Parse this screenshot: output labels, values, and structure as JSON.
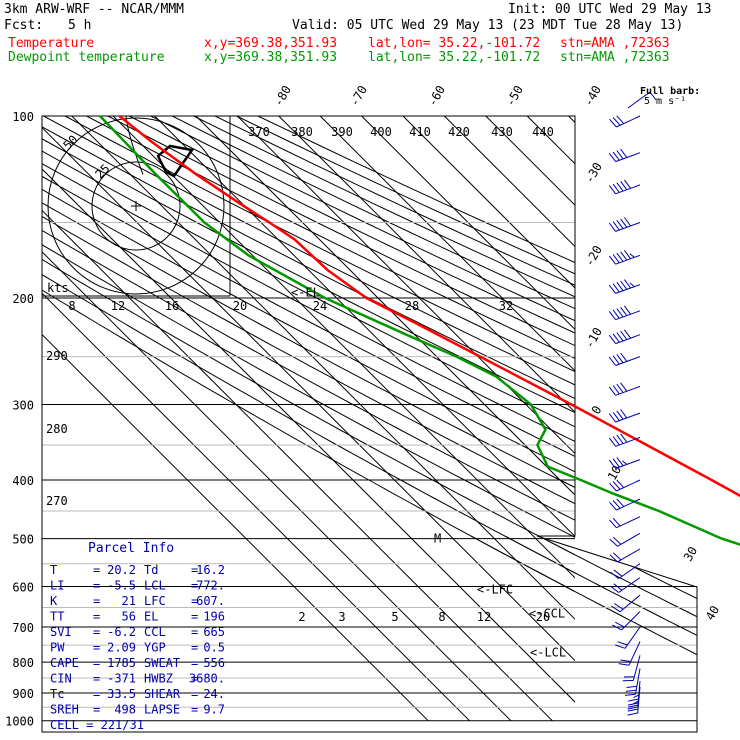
{
  "header": {
    "model": "3km ARW-WRF -- NCAR/MMM",
    "init": "Init: 00 UTC Wed 29 May 13",
    "fcst_label": "Fcst:",
    "fcst_value": "5 h",
    "valid": "Valid: 05 UTC Wed 29 May 13 (23 MDT Tue 28 May 13)",
    "temp_label": "Temperature",
    "dew_label": "Dewpoint temperature",
    "xy": "x,y=369.38,351.93",
    "latlon": "lat,lon= 35.22,-101.72",
    "stn": "stn=AMA ,72363",
    "barb_title": "Full barb:",
    "barb_units": "5 m s⁻¹"
  },
  "chart_data": {
    "type": "line",
    "title": "",
    "pressure_ticks": [
      100,
      200,
      300,
      400,
      500,
      600,
      700,
      800,
      900,
      1000
    ],
    "isotherm_labels": [
      -80,
      -70,
      -60,
      -50,
      -40,
      -30,
      -20,
      -10,
      0,
      10,
      20,
      30,
      40
    ],
    "theta_labels": [
      370,
      380,
      390,
      400,
      410,
      420,
      430,
      440
    ],
    "theta_side_labels": [
      290,
      280,
      270
    ],
    "mixing_ratio_labels": [
      2,
      3,
      5,
      8,
      12,
      20
    ],
    "hodograph_speed_labels": [
      8,
      12,
      16,
      20,
      24,
      28,
      32
    ],
    "hodograph_units": "kts",
    "hodograph_ring_labels": [
      50,
      25
    ],
    "levels": [
      {
        "text": "<-EL",
        "p": 196
      },
      {
        "text": "<-LFC",
        "p": 607
      },
      {
        "text": "<-CCL",
        "p": 665
      },
      {
        "text": "<-LCL",
        "p": 772
      },
      {
        "text": "M",
        "p": 500
      }
    ],
    "series": [
      {
        "name": "Temperature",
        "color": "#ff0000",
        "p": [
          880,
          850,
          820,
          800,
          770,
          740,
          700,
          660,
          600,
          550,
          500,
          450,
          400,
          350,
          300,
          250,
          220,
          200,
          180,
          160,
          150,
          140,
          125,
          110,
          100
        ],
        "t": [
          19.5,
          20.0,
          20.2,
          21.5,
          20.5,
          18.3,
          14.7,
          11.5,
          6.4,
          2.4,
          -2.5,
          -7.3,
          -13.4,
          -20.6,
          -29.0,
          -39.5,
          -47.0,
          -52.8,
          -55.4,
          -56.0,
          -58.0,
          -60.4,
          -64.0,
          -67.0,
          -68.5
        ]
      },
      {
        "name": "Dewpoint temperature",
        "color": "#009900",
        "p": [
          880,
          850,
          820,
          780,
          740,
          700,
          650,
          600,
          550,
          520,
          500,
          450,
          420,
          400,
          380,
          350,
          330,
          300,
          270,
          250,
          230,
          200,
          170,
          150,
          125,
          100
        ],
        "t": [
          16.2,
          16.4,
          15.7,
          9.0,
          2.0,
          -12.8,
          -16.0,
          -14.5,
          -17.5,
          -20.0,
          -25.1,
          -33.6,
          -40.7,
          -45.0,
          -49.7,
          -47.0,
          -41.3,
          -38.8,
          -40.4,
          -45.2,
          -52.0,
          -62.8,
          -71.0,
          -73.7,
          -73.8,
          -73.2
        ]
      }
    ],
    "winds": [
      {
        "p": 100,
        "dir": 245,
        "spd": 15
      },
      {
        "p": 115,
        "dir": 250,
        "spd": 22
      },
      {
        "p": 130,
        "dir": 250,
        "spd": 25
      },
      {
        "p": 150,
        "dir": 250,
        "spd": 25
      },
      {
        "p": 170,
        "dir": 250,
        "spd": 28
      },
      {
        "p": 190,
        "dir": 250,
        "spd": 28
      },
      {
        "p": 210,
        "dir": 250,
        "spd": 25
      },
      {
        "p": 230,
        "dir": 250,
        "spd": 25
      },
      {
        "p": 250,
        "dir": 250,
        "spd": 22
      },
      {
        "p": 280,
        "dir": 250,
        "spd": 22
      },
      {
        "p": 310,
        "dir": 250,
        "spd": 20
      },
      {
        "p": 340,
        "dir": 250,
        "spd": 20
      },
      {
        "p": 370,
        "dir": 250,
        "spd": 18
      },
      {
        "p": 400,
        "dir": 245,
        "spd": 15
      },
      {
        "p": 430,
        "dir": 245,
        "spd": 15
      },
      {
        "p": 460,
        "dir": 245,
        "spd": 12
      },
      {
        "p": 490,
        "dir": 240,
        "spd": 12
      },
      {
        "p": 520,
        "dir": 240,
        "spd": 12
      },
      {
        "p": 550,
        "dir": 235,
        "spd": 12
      },
      {
        "p": 580,
        "dir": 235,
        "spd": 10
      },
      {
        "p": 620,
        "dir": 230,
        "spd": 10
      },
      {
        "p": 660,
        "dir": 225,
        "spd": 10
      },
      {
        "p": 700,
        "dir": 215,
        "spd": 10
      },
      {
        "p": 740,
        "dir": 205,
        "spd": 10
      },
      {
        "p": 780,
        "dir": 195,
        "spd": 12
      },
      {
        "p": 820,
        "dir": 190,
        "spd": 15
      },
      {
        "p": 860,
        "dir": 185,
        "spd": 18
      },
      {
        "p": 880,
        "dir": 185,
        "spd": 18
      }
    ],
    "hodograph": [
      {
        "u": -5.5,
        "v": 4
      },
      {
        "u": -3,
        "v": 1.5
      },
      {
        "u": 0.5,
        "v": 3
      },
      {
        "u": 2,
        "v": 6
      },
      {
        "u": 0,
        "v": 10
      },
      {
        "u": -3,
        "v": 12.5
      },
      {
        "u": -4,
        "v": 15
      },
      {
        "u": -2,
        "v": 21
      },
      {
        "u": -0.5,
        "v": 27
      }
    ]
  },
  "parcel_info": {
    "title": "Parcel Info",
    "rows": [
      {
        "left_label": "T",
        "left_value": "20.2",
        "right_label": "Td",
        "right_value": "16.2"
      },
      {
        "left_label": "LI",
        "left_value": "-5.5",
        "right_label": "LCL",
        "right_value": "772."
      },
      {
        "left_label": "K",
        "left_value": "21",
        "right_label": "LFC",
        "right_value": "607."
      },
      {
        "left_label": "TT",
        "left_value": "56",
        "right_label": "EL",
        "right_value": "196"
      },
      {
        "left_label": "SVI",
        "left_value": "-6.2",
        "right_label": "CCL",
        "right_value": "665"
      },
      {
        "left_label": "PW",
        "left_value": "2.09",
        "right_label": "YGP",
        "right_value": "0.5"
      },
      {
        "left_label": "CAPE",
        "left_value": "1785",
        "right_label": "SWEAT",
        "right_value": "556"
      },
      {
        "left_label": "CIN",
        "left_value": "-371",
        "right_label": "HWBZ",
        "right_value": "3680."
      },
      {
        "left_label": "Tc",
        "left_value": "33.5",
        "right_label": "SHEAR",
        "right_value": "24."
      },
      {
        "left_label": "SREH",
        "left_value": "498",
        "right_label": "LAPSE",
        "right_value": "9.7"
      }
    ],
    "cell": "CELL = 221/31"
  }
}
